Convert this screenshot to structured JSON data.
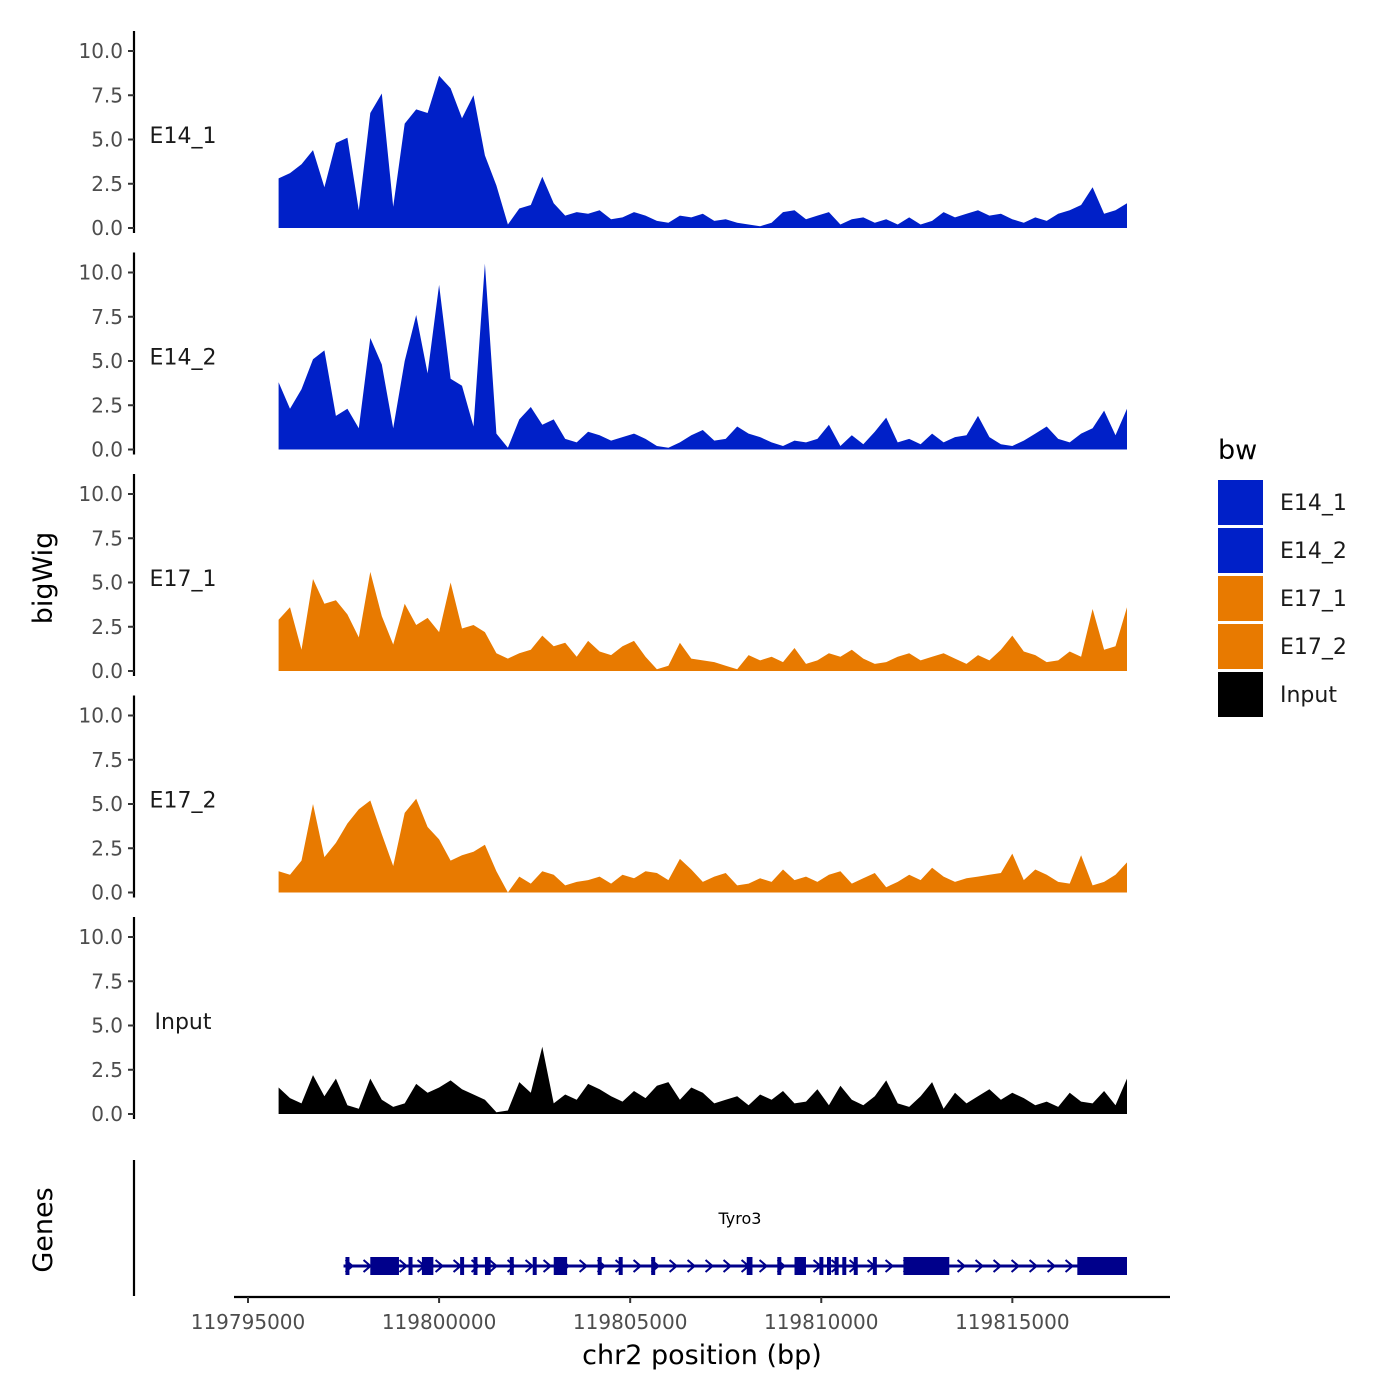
{
  "chart_data": {
    "type": "area",
    "region": "chr2",
    "xlim": [
      119795000,
      119818000
    ],
    "x_ticks": [
      119795000,
      119800000,
      119805000,
      119810000,
      119815000
    ],
    "x_tick_labels": [
      "119795000",
      "119800000",
      "119805000",
      "119810000",
      "119815000"
    ],
    "ylim": [
      0,
      10.5
    ],
    "y_ticks": [
      0,
      2.5,
      5,
      7.5,
      10
    ],
    "y_tick_labels": [
      "0.0",
      "2.5",
      "5.0",
      "7.5",
      "10.0"
    ],
    "xlabel": "chr2 position (bp)",
    "ylabel": "bigWig",
    "genes_label": "Genes",
    "series": [
      {
        "name": "E14_1",
        "color": "#0020c8",
        "x": [
          119795800,
          119796100,
          119796400,
          119796700,
          119797000,
          119797300,
          119797600,
          119797900,
          119798200,
          119798500,
          119798800,
          119799100,
          119799400,
          119799700,
          119800000,
          119800300,
          119800600,
          119800900,
          119801200,
          119801500,
          119801800,
          119802100,
          119802400,
          119802700,
          119803000,
          119803300,
          119803600,
          119803900,
          119804200,
          119804500,
          119804800,
          119805100,
          119805400,
          119805700,
          119806000,
          119806300,
          119806600,
          119806900,
          119807200,
          119807500,
          119807800,
          119808100,
          119808400,
          119808700,
          119809000,
          119809300,
          119809600,
          119809900,
          119810200,
          119810500,
          119810800,
          119811100,
          119811400,
          119811700,
          119812000,
          119812300,
          119812600,
          119812900,
          119813200,
          119813500,
          119813800,
          119814100,
          119814400,
          119814700,
          119815000,
          119815300,
          119815600,
          119815900,
          119816200,
          119816500,
          119816800,
          119817100,
          119817400,
          119817700,
          119818000
        ],
        "y": [
          2.8,
          3.1,
          3.6,
          4.4,
          2.3,
          4.8,
          5.1,
          1.0,
          6.5,
          7.6,
          1.2,
          5.9,
          6.7,
          6.5,
          8.6,
          7.9,
          6.2,
          7.5,
          4.1,
          2.4,
          0.2,
          1.1,
          1.3,
          2.9,
          1.4,
          0.7,
          0.9,
          0.8,
          1.0,
          0.5,
          0.6,
          0.9,
          0.7,
          0.4,
          0.3,
          0.7,
          0.6,
          0.8,
          0.4,
          0.5,
          0.3,
          0.2,
          0.1,
          0.3,
          0.9,
          1.0,
          0.5,
          0.7,
          0.9,
          0.2,
          0.5,
          0.6,
          0.3,
          0.5,
          0.2,
          0.6,
          0.2,
          0.4,
          0.9,
          0.6,
          0.8,
          1.0,
          0.7,
          0.8,
          0.5,
          0.3,
          0.6,
          0.4,
          0.8,
          1.0,
          1.3,
          2.3,
          0.8,
          1.0,
          1.4
        ]
      },
      {
        "name": "E14_2",
        "color": "#0020c8",
        "x": [
          119795800,
          119796100,
          119796400,
          119796700,
          119797000,
          119797300,
          119797600,
          119797900,
          119798200,
          119798500,
          119798800,
          119799100,
          119799400,
          119799700,
          119800000,
          119800300,
          119800600,
          119800900,
          119801200,
          119801500,
          119801800,
          119802100,
          119802400,
          119802700,
          119803000,
          119803300,
          119803600,
          119803900,
          119804200,
          119804500,
          119804800,
          119805100,
          119805400,
          119805700,
          119806000,
          119806300,
          119806600,
          119806900,
          119807200,
          119807500,
          119807800,
          119808100,
          119808400,
          119808700,
          119809000,
          119809300,
          119809600,
          119809900,
          119810200,
          119810500,
          119810800,
          119811100,
          119811400,
          119811700,
          119812000,
          119812300,
          119812600,
          119812900,
          119813200,
          119813500,
          119813800,
          119814100,
          119814400,
          119814700,
          119815000,
          119815300,
          119815600,
          119815900,
          119816200,
          119816500,
          119816800,
          119817100,
          119817400,
          119817700,
          119818000
        ],
        "y": [
          3.8,
          2.3,
          3.4,
          5.1,
          5.6,
          1.9,
          2.3,
          1.2,
          6.3,
          4.8,
          1.2,
          5.0,
          7.6,
          4.3,
          9.3,
          4.0,
          3.6,
          1.3,
          10.5,
          0.9,
          0.1,
          1.7,
          2.4,
          1.4,
          1.7,
          0.6,
          0.4,
          1.0,
          0.8,
          0.5,
          0.7,
          0.9,
          0.6,
          0.2,
          0.1,
          0.4,
          0.8,
          1.1,
          0.5,
          0.6,
          1.3,
          0.9,
          0.7,
          0.4,
          0.2,
          0.5,
          0.4,
          0.6,
          1.4,
          0.2,
          0.8,
          0.3,
          1.0,
          1.8,
          0.4,
          0.6,
          0.3,
          0.9,
          0.4,
          0.7,
          0.8,
          1.9,
          0.7,
          0.3,
          0.2,
          0.5,
          0.9,
          1.3,
          0.6,
          0.4,
          0.9,
          1.2,
          2.2,
          0.8,
          2.3
        ]
      },
      {
        "name": "E17_1",
        "color": "#e87a00",
        "x": [
          119795800,
          119796100,
          119796400,
          119796700,
          119797000,
          119797300,
          119797600,
          119797900,
          119798200,
          119798500,
          119798800,
          119799100,
          119799400,
          119799700,
          119800000,
          119800300,
          119800600,
          119800900,
          119801200,
          119801500,
          119801800,
          119802100,
          119802400,
          119802700,
          119803000,
          119803300,
          119803600,
          119803900,
          119804200,
          119804500,
          119804800,
          119805100,
          119805400,
          119805700,
          119806000,
          119806300,
          119806600,
          119806900,
          119807200,
          119807500,
          119807800,
          119808100,
          119808400,
          119808700,
          119809000,
          119809300,
          119809600,
          119809900,
          119810200,
          119810500,
          119810800,
          119811100,
          119811400,
          119811700,
          119812000,
          119812300,
          119812600,
          119812900,
          119813200,
          119813500,
          119813800,
          119814100,
          119814400,
          119814700,
          119815000,
          119815300,
          119815600,
          119815900,
          119816200,
          119816500,
          119816800,
          119817100,
          119817400,
          119817700,
          119818000
        ],
        "y": [
          2.9,
          3.6,
          1.2,
          5.2,
          3.8,
          4.0,
          3.2,
          1.9,
          5.6,
          3.1,
          1.5,
          3.8,
          2.6,
          3.0,
          2.2,
          5.0,
          2.4,
          2.6,
          2.2,
          1.0,
          0.7,
          1.0,
          1.2,
          2.0,
          1.4,
          1.6,
          0.8,
          1.7,
          1.1,
          0.9,
          1.4,
          1.7,
          0.8,
          0.1,
          0.3,
          1.6,
          0.7,
          0.6,
          0.5,
          0.3,
          0.1,
          0.9,
          0.6,
          0.8,
          0.5,
          1.3,
          0.4,
          0.6,
          1.0,
          0.8,
          1.2,
          0.7,
          0.4,
          0.5,
          0.8,
          1.0,
          0.6,
          0.8,
          1.0,
          0.7,
          0.4,
          0.9,
          0.6,
          1.2,
          2.0,
          1.1,
          0.9,
          0.5,
          0.6,
          1.1,
          0.8,
          3.5,
          1.2,
          1.4,
          3.6
        ]
      },
      {
        "name": "E17_2",
        "color": "#e87a00",
        "x": [
          119795800,
          119796100,
          119796400,
          119796700,
          119797000,
          119797300,
          119797600,
          119797900,
          119798200,
          119798500,
          119798800,
          119799100,
          119799400,
          119799700,
          119800000,
          119800300,
          119800600,
          119800900,
          119801200,
          119801500,
          119801800,
          119802100,
          119802400,
          119802700,
          119803000,
          119803300,
          119803600,
          119803900,
          119804200,
          119804500,
          119804800,
          119805100,
          119805400,
          119805700,
          119806000,
          119806300,
          119806600,
          119806900,
          119807200,
          119807500,
          119807800,
          119808100,
          119808400,
          119808700,
          119809000,
          119809300,
          119809600,
          119809900,
          119810200,
          119810500,
          119810800,
          119811100,
          119811400,
          119811700,
          119812000,
          119812300,
          119812600,
          119812900,
          119813200,
          119813500,
          119813800,
          119814100,
          119814400,
          119814700,
          119815000,
          119815300,
          119815600,
          119815900,
          119816200,
          119816500,
          119816800,
          119817100,
          119817400,
          119817700,
          119818000
        ],
        "y": [
          1.2,
          1.0,
          1.8,
          5.0,
          2.0,
          2.8,
          3.9,
          4.7,
          5.2,
          3.3,
          1.5,
          4.5,
          5.3,
          3.7,
          3.0,
          1.8,
          2.1,
          2.3,
          2.7,
          1.2,
          0.0,
          0.9,
          0.5,
          1.2,
          1.0,
          0.4,
          0.6,
          0.7,
          0.9,
          0.5,
          1.0,
          0.8,
          1.2,
          1.1,
          0.7,
          1.9,
          1.3,
          0.6,
          0.9,
          1.1,
          0.4,
          0.5,
          0.8,
          0.6,
          1.3,
          0.7,
          0.9,
          0.6,
          1.0,
          1.2,
          0.5,
          0.8,
          1.1,
          0.3,
          0.6,
          1.0,
          0.7,
          1.4,
          0.9,
          0.6,
          0.8,
          0.9,
          1.0,
          1.1,
          2.2,
          0.7,
          1.3,
          1.0,
          0.6,
          0.5,
          2.1,
          0.4,
          0.6,
          1.0,
          1.7
        ]
      },
      {
        "name": "Input",
        "color": "#000000",
        "x": [
          119795800,
          119796100,
          119796400,
          119796700,
          119797000,
          119797300,
          119797600,
          119797900,
          119798200,
          119798500,
          119798800,
          119799100,
          119799400,
          119799700,
          119800000,
          119800300,
          119800600,
          119800900,
          119801200,
          119801500,
          119801800,
          119802100,
          119802400,
          119802700,
          119803000,
          119803300,
          119803600,
          119803900,
          119804200,
          119804500,
          119804800,
          119805100,
          119805400,
          119805700,
          119806000,
          119806300,
          119806600,
          119806900,
          119807200,
          119807500,
          119807800,
          119808100,
          119808400,
          119808700,
          119809000,
          119809300,
          119809600,
          119809900,
          119810200,
          119810500,
          119810800,
          119811100,
          119811400,
          119811700,
          119812000,
          119812300,
          119812600,
          119812900,
          119813200,
          119813500,
          119813800,
          119814100,
          119814400,
          119814700,
          119815000,
          119815300,
          119815600,
          119815900,
          119816200,
          119816500,
          119816800,
          119817100,
          119817400,
          119817700,
          119818000
        ],
        "y": [
          1.5,
          0.9,
          0.6,
          2.2,
          1.0,
          2.0,
          0.5,
          0.3,
          2.0,
          0.8,
          0.4,
          0.6,
          1.7,
          1.2,
          1.5,
          1.9,
          1.4,
          1.1,
          0.8,
          0.1,
          0.2,
          1.8,
          1.2,
          3.8,
          0.6,
          1.1,
          0.8,
          1.7,
          1.4,
          1.0,
          0.7,
          1.3,
          0.9,
          1.6,
          1.8,
          0.8,
          1.5,
          1.2,
          0.6,
          0.8,
          1.0,
          0.5,
          1.1,
          0.8,
          1.3,
          0.6,
          0.7,
          1.4,
          0.5,
          1.6,
          0.8,
          0.5,
          1.0,
          1.9,
          0.6,
          0.4,
          1.0,
          1.8,
          0.3,
          1.2,
          0.6,
          1.0,
          1.4,
          0.8,
          1.2,
          0.9,
          0.5,
          0.7,
          0.4,
          1.2,
          0.7,
          0.6,
          1.3,
          0.5,
          2.0
        ]
      }
    ],
    "legend": {
      "title": "bw",
      "position": "right",
      "entries": [
        {
          "label": "E14_1",
          "color": "#0020c8"
        },
        {
          "label": "E14_2",
          "color": "#0020c8"
        },
        {
          "label": "E17_1",
          "color": "#e87a00"
        },
        {
          "label": "E17_2",
          "color": "#e87a00"
        },
        {
          "label": "Input",
          "color": "#000000"
        }
      ]
    },
    "gene": {
      "name": "Tyro3",
      "start": 119797500,
      "end": 119818000,
      "strand": "+",
      "color": "#00008b",
      "exons": [
        [
          119797550,
          119797620
        ],
        [
          119798200,
          119798950
        ],
        [
          119799200,
          119799300
        ],
        [
          119799550,
          119799850
        ],
        [
          119800550,
          119800620
        ],
        [
          119800900,
          119800970
        ],
        [
          119801200,
          119801350
        ],
        [
          119801850,
          119801920
        ],
        [
          119802450,
          119802520
        ],
        [
          119803000,
          119803350
        ],
        [
          119804150,
          119804200
        ],
        [
          119804700,
          119804750
        ],
        [
          119805550,
          119805620
        ],
        [
          119808050,
          119808200
        ],
        [
          119808850,
          119808950
        ],
        [
          119809300,
          119809600
        ],
        [
          119809950,
          119810020
        ],
        [
          119810150,
          119810220
        ],
        [
          119810350,
          119810420
        ],
        [
          119810550,
          119810650
        ],
        [
          119810850,
          119810920
        ],
        [
          119811350,
          119811450
        ],
        [
          119812150,
          119813350
        ],
        [
          119816700,
          119818000
        ]
      ]
    }
  }
}
